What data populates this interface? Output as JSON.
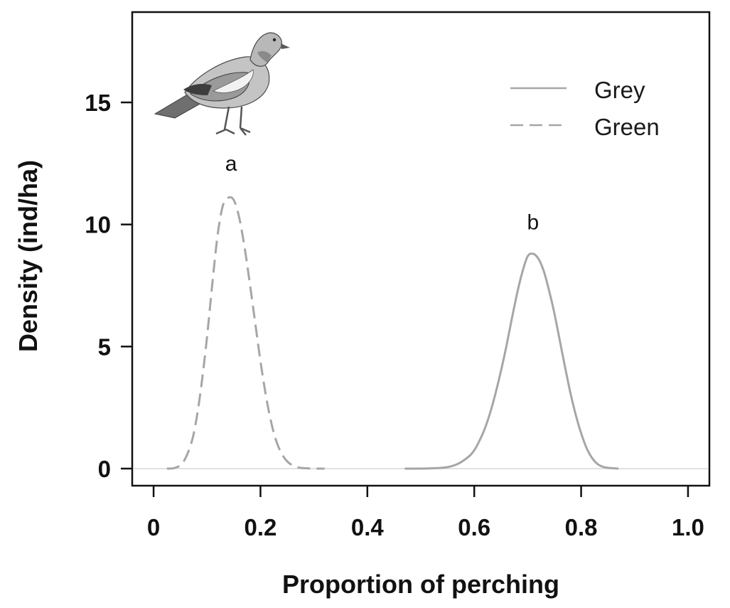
{
  "chart_data": {
    "type": "line",
    "xlabel": "Proportion of perching",
    "ylabel": "Density (ind/ha)",
    "xlim": [
      -0.04,
      1.04
    ],
    "ylim": [
      -0.7,
      18.7
    ],
    "x_ticks": [
      "0",
      "0.2",
      "0.4",
      "0.6",
      "0.8",
      "1.0"
    ],
    "x_tick_values": [
      0,
      0.2,
      0.4,
      0.6,
      0.8,
      1.0
    ],
    "y_ticks": [
      "0",
      "5",
      "10",
      "15"
    ],
    "y_tick_values": [
      0,
      5,
      10,
      15
    ],
    "grid": false,
    "legend_position": "top-right",
    "series": [
      {
        "name": "Grey",
        "style": "solid",
        "color": "#a6a6a6",
        "x": [
          0.47,
          0.5,
          0.53,
          0.55,
          0.57,
          0.59,
          0.6,
          0.61,
          0.62,
          0.63,
          0.64,
          0.65,
          0.66,
          0.67,
          0.68,
          0.69,
          0.7,
          0.71,
          0.72,
          0.73,
          0.74,
          0.75,
          0.76,
          0.77,
          0.78,
          0.79,
          0.8,
          0.81,
          0.82,
          0.83,
          0.84,
          0.85,
          0.87
        ],
        "y": [
          0.0,
          0.0,
          0.02,
          0.06,
          0.2,
          0.5,
          0.75,
          1.15,
          1.65,
          2.3,
          3.1,
          4.0,
          5.0,
          6.1,
          7.15,
          8.05,
          8.7,
          8.8,
          8.6,
          8.1,
          7.3,
          6.35,
          5.25,
          4.15,
          3.1,
          2.2,
          1.45,
          0.85,
          0.45,
          0.2,
          0.08,
          0.03,
          0.0
        ]
      },
      {
        "name": "Green",
        "style": "dashed",
        "color": "#a6a6a6",
        "x": [
          0.025,
          0.04,
          0.055,
          0.07,
          0.08,
          0.09,
          0.1,
          0.11,
          0.12,
          0.13,
          0.14,
          0.15,
          0.16,
          0.17,
          0.18,
          0.19,
          0.2,
          0.21,
          0.22,
          0.23,
          0.24,
          0.25,
          0.26,
          0.27,
          0.28,
          0.3,
          0.32
        ],
        "y": [
          0.0,
          0.03,
          0.25,
          1.0,
          2.0,
          3.5,
          5.4,
          7.6,
          9.6,
          10.8,
          11.1,
          11.0,
          10.3,
          9.1,
          7.6,
          6.0,
          4.4,
          3.0,
          1.9,
          1.1,
          0.6,
          0.3,
          0.13,
          0.05,
          0.02,
          0.0,
          0.0
        ]
      }
    ],
    "annotations": [
      {
        "text": "a",
        "x": 0.145,
        "y": 12.2
      },
      {
        "text": "b",
        "x": 0.71,
        "y": 9.8
      }
    ],
    "illustration": "pigeon-illustration"
  }
}
